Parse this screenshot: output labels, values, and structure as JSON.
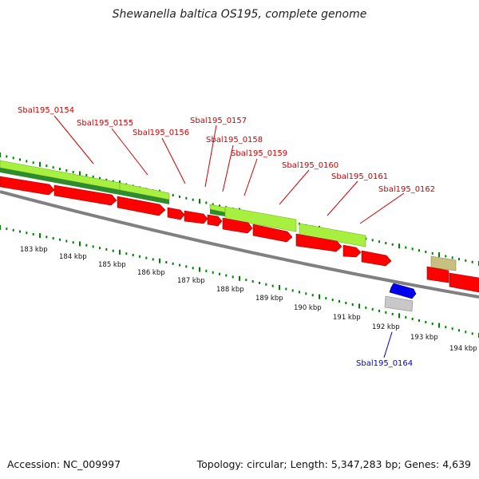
{
  "title": "Shewanella baltica OS195, complete genome",
  "footer": {
    "accession": "Accession: NC_009997",
    "summary": "Topology: circular; Length: 5,347,283 bp; Genes: 4,639"
  },
  "colors": {
    "cds_red": "#ff0000",
    "light_green": "#a8f040",
    "dark_green": "#2e8b2e",
    "blue": "#0000ee",
    "grey": "#c8c8c8",
    "olive": "#c8c080",
    "label_red": "#cc0000",
    "label_blue": "#0000cc",
    "tick_green": "#008000"
  },
  "scale_labels": [
    "183 kbp",
    "184 kbp",
    "185 kbp",
    "186 kbp",
    "187 kbp",
    "188 kbp",
    "189 kbp",
    "190 kbp",
    "191 kbp",
    "192 kbp",
    "193 kbp",
    "194 kbp"
  ],
  "gene_labels": [
    {
      "text": "Sbal195_0154",
      "color": "label_red"
    },
    {
      "text": "Sbal195_0155",
      "color": "label_red"
    },
    {
      "text": "Sbal195_0156",
      "color": "label_red"
    },
    {
      "text": "Sbal195_0157",
      "color": "label_red"
    },
    {
      "text": "Sbal195_0158",
      "color": "label_red"
    },
    {
      "text": "Sbal195_0159",
      "color": "label_red"
    },
    {
      "text": "Sbal195_0160",
      "color": "label_red"
    },
    {
      "text": "Sbal195_0161",
      "color": "label_red"
    },
    {
      "text": "Sbal195_0162",
      "color": "label_red"
    },
    {
      "text": "Sbal195_0164",
      "color": "label_blue"
    }
  ]
}
